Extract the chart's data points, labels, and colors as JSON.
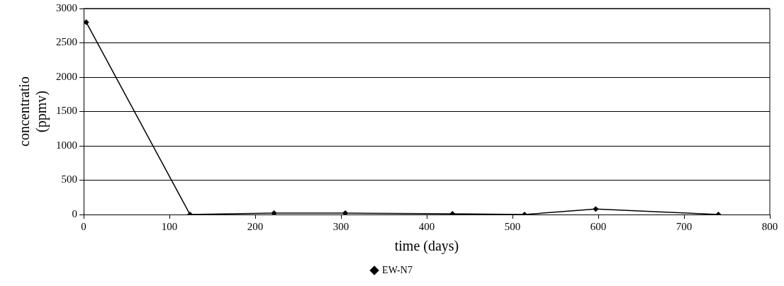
{
  "chart_data": {
    "type": "line",
    "xlabel": "time (days)",
    "ylabel": "concentratio\n(ppmv)",
    "xlim": [
      0,
      800
    ],
    "xticks": [
      0,
      100,
      200,
      300,
      400,
      500,
      600,
      700,
      800
    ],
    "ylim": [
      0,
      3000
    ],
    "yticks": [
      0,
      500,
      1000,
      1500,
      2000,
      2500,
      3000
    ],
    "grid": "y",
    "legend": "bottom",
    "marker": "diamond",
    "line_style": "solid",
    "series": [
      {
        "name": "EW-N7",
        "color": "#000000",
        "x": [
          3,
          124,
          222,
          305,
          430,
          514,
          597,
          740
        ],
        "values": [
          2800,
          0,
          20,
          20,
          10,
          0,
          80,
          0
        ]
      }
    ]
  }
}
